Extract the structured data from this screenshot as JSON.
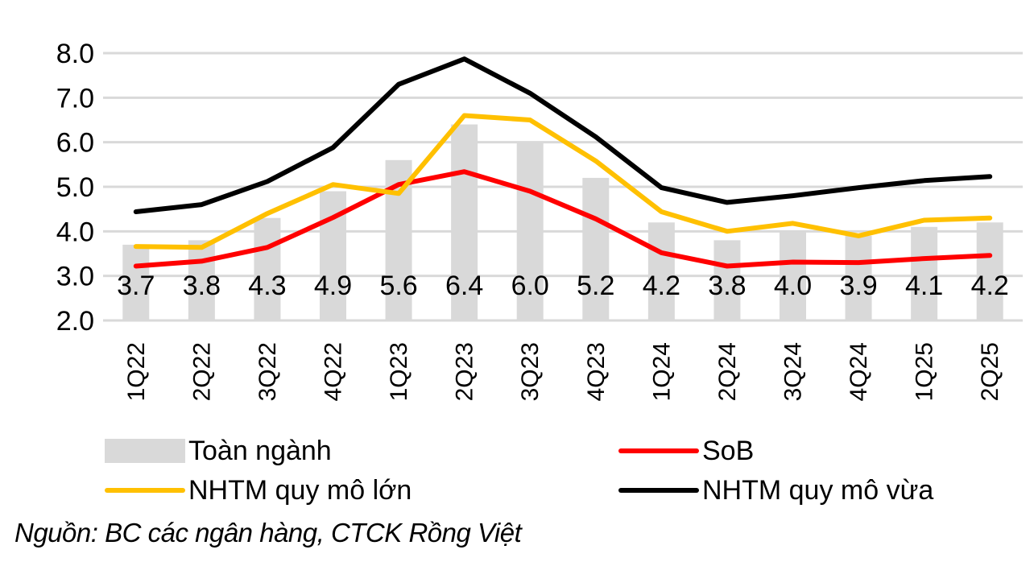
{
  "chart_data": {
    "type": "bar",
    "title": "",
    "xlabel": "",
    "ylabel": "",
    "ylim": [
      2.0,
      8.0
    ],
    "yticks": [
      "2.0",
      "3.0",
      "4.0",
      "5.0",
      "6.0",
      "7.0",
      "8.0"
    ],
    "grid": true,
    "legend_position": "bottom",
    "categories": [
      "1Q22",
      "2Q22",
      "3Q22",
      "4Q22",
      "1Q23",
      "2Q23",
      "3Q23",
      "4Q23",
      "1Q24",
      "2Q24",
      "3Q24",
      "4Q24",
      "1Q25",
      "2Q25"
    ],
    "series": [
      {
        "name": "Toàn ngành",
        "type": "bar",
        "color": "#D9D9D9",
        "values": [
          3.7,
          3.8,
          4.3,
          4.9,
          5.6,
          6.4,
          6.0,
          5.2,
          4.2,
          3.8,
          4.0,
          3.9,
          4.1,
          4.2
        ],
        "data_labels": [
          "3.7",
          "3.8",
          "4.3",
          "4.9",
          "5.6",
          "6.4",
          "6.0",
          "5.2",
          "4.2",
          "3.8",
          "4.0",
          "3.9",
          "4.1",
          "4.2"
        ]
      },
      {
        "name": "SoB",
        "type": "line",
        "color": "#FF0000",
        "values": [
          3.22,
          3.33,
          3.64,
          4.31,
          5.05,
          5.34,
          4.9,
          4.28,
          3.52,
          3.22,
          3.31,
          3.3,
          3.39,
          3.46
        ]
      },
      {
        "name": "NHTM quy mô lớn",
        "type": "line",
        "color": "#FFC000",
        "values": [
          3.66,
          3.64,
          4.4,
          5.05,
          4.85,
          6.6,
          6.5,
          5.58,
          4.44,
          4.0,
          4.18,
          3.9,
          4.25,
          4.3
        ]
      },
      {
        "name": "NHTM quy mô vừa",
        "type": "line",
        "color": "#000000",
        "values": [
          4.44,
          4.6,
          5.12,
          5.88,
          7.3,
          7.87,
          7.1,
          6.12,
          4.98,
          4.65,
          4.8,
          4.98,
          5.14,
          5.23
        ]
      }
    ]
  },
  "legend": {
    "items": [
      {
        "label": "Toàn ngành"
      },
      {
        "label": "SoB"
      },
      {
        "label": "NHTM quy mô lớn"
      },
      {
        "label": "NHTM quy mô vừa"
      }
    ]
  },
  "source_note": "Nguồn: BC các ngân hàng, CTCK Rồng Việt"
}
